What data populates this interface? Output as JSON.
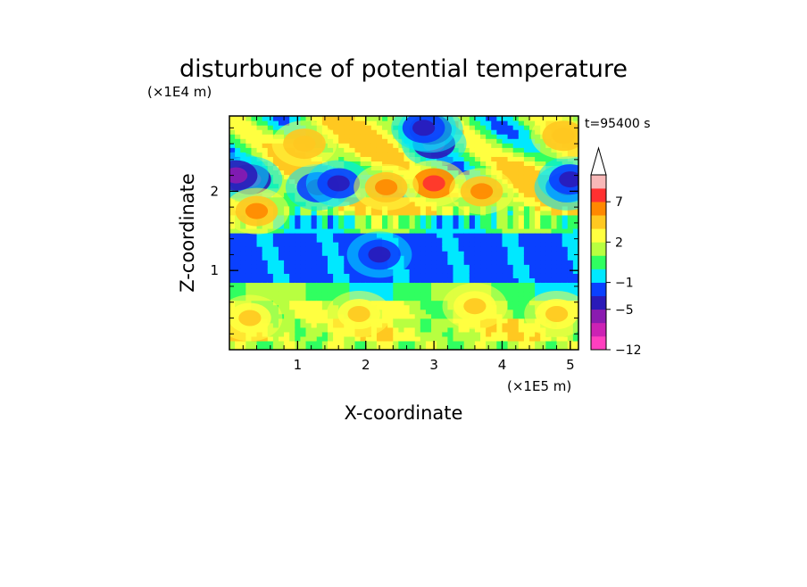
{
  "chart_data": {
    "type": "heatmap",
    "title": "disturbunce of potential temperature",
    "xlabel": "X-coordinate",
    "ylabel": "Z-coordinate",
    "x_unit": "(×1E5 m)",
    "y_unit": "(×1E4 m)",
    "time_label": "t=95400 s",
    "xlim": [
      0,
      5.12
    ],
    "ylim": [
      0,
      2.95
    ],
    "x_ticks": [
      "1",
      "2",
      "3",
      "4",
      "5"
    ],
    "y_ticks": [
      "1",
      "2"
    ],
    "x_tick_values": [
      1,
      2,
      3,
      4,
      5
    ],
    "y_tick_values": [
      1,
      2
    ],
    "colorbar": {
      "label_values": [
        "7",
        "2",
        "−1",
        "−5",
        "−12"
      ],
      "levels": [
        -12,
        -9,
        -7,
        -5,
        -3,
        -1,
        0,
        1,
        2,
        3,
        5,
        7,
        9,
        11
      ],
      "colors": [
        "#ff3fbf",
        "#cc22b4",
        "#8a1bb0",
        "#2a1ab8",
        "#0a40ff",
        "#00e8ff",
        "#30ff60",
        "#b8ff40",
        "#ffff40",
        "#ffc820",
        "#ff8800",
        "#ff3030",
        "#f8b8b8"
      ],
      "extend": "max"
    },
    "features": [
      {
        "x": 3.0,
        "z": 2.6,
        "value": -6
      },
      {
        "x": 2.95,
        "z": 2.78,
        "value": -6
      },
      {
        "x": 0.3,
        "z": 2.15,
        "value": -6
      },
      {
        "x": 0.1,
        "z": 2.2,
        "value": -6
      },
      {
        "x": 1.3,
        "z": 2.05,
        "value": -5
      },
      {
        "x": 1.6,
        "z": 2.1,
        "value": -4
      },
      {
        "x": 2.85,
        "z": 2.8,
        "value": -5
      },
      {
        "x": 4.95,
        "z": 2.05,
        "value": -5
      },
      {
        "x": 5.0,
        "z": 2.15,
        "value": -4
      },
      {
        "x": 3.0,
        "z": 2.1,
        "value": 7
      },
      {
        "x": 3.7,
        "z": 2.0,
        "value": 5
      },
      {
        "x": 2.3,
        "z": 2.05,
        "value": 5
      },
      {
        "x": 0.4,
        "z": 1.75,
        "value": 5
      },
      {
        "x": 1.1,
        "z": 2.6,
        "value": 4
      },
      {
        "x": 4.9,
        "z": 2.7,
        "value": 4
      },
      {
        "x": 2.2,
        "z": 1.2,
        "value": -4
      },
      {
        "x": 0.3,
        "z": 0.4,
        "value": 3
      },
      {
        "x": 4.8,
        "z": 0.45,
        "value": 3
      },
      {
        "x": 3.6,
        "z": 0.55,
        "value": 3
      },
      {
        "x": 1.9,
        "z": 0.45,
        "value": 3
      }
    ]
  }
}
